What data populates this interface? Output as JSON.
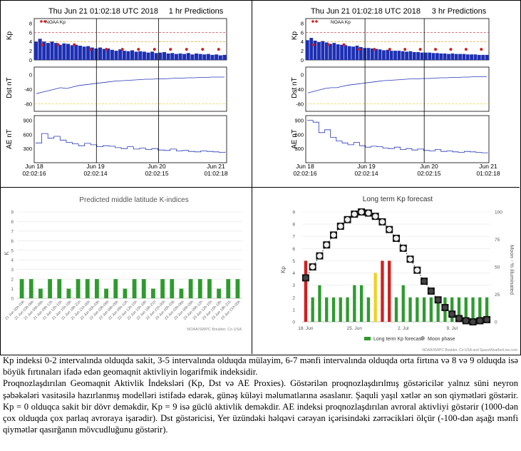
{
  "left_panel": {
    "title": "Thu Jun 21 01:02:18 UTC 2018",
    "subtitle": "1 hr Predictions",
    "legend": "NOAA Kp",
    "ylabels": [
      "Kp",
      "Dst nT",
      "AE nT"
    ],
    "x_dates": [
      "Jun 18",
      "Jun 19",
      "Jun 20",
      "Jun 21"
    ],
    "x_times": [
      "02:02:16",
      "02:02:14",
      "02:02:15",
      "01:02:18"
    ]
  },
  "right_panel": {
    "title": "Thu Jun 21 01:02:18 UTC 2018",
    "subtitle": "3 hr Predictions",
    "legend": "NOAA Kp",
    "ylabels": [
      "Kp",
      "Dst nT",
      "AE nT"
    ],
    "x_dates": [
      "Jun 18",
      "Jun 19",
      "Jun 20",
      "Jun 21"
    ],
    "x_times": [
      "02:02:16",
      "02:02:14",
      "02:02:15",
      "01:02:18"
    ]
  },
  "kp_ticks": [
    "8",
    "6",
    "4",
    "2",
    "0"
  ],
  "dst_ticks": [
    "0",
    "-40",
    "-80"
  ],
  "ae_ticks": [
    "900",
    "600",
    "300"
  ],
  "k_panel": {
    "title": "Predicted middle latitude K-indices",
    "ylabel": "K",
    "credit": "NOAA/SWPC Boulder, Co USA",
    "yticks": [
      "9",
      "8",
      "7",
      "6",
      "5",
      "4",
      "3",
      "2",
      "1",
      "0"
    ],
    "xticks": [
      "21 Jun 00h-03h",
      "21 Jun 03h-06h",
      "21 Jun 06h-09h",
      "21 Jun 09h-12h",
      "21 Jun 12h-15h",
      "21 Jun 15h-18h",
      "21 Jun 18h-21h",
      "21 Jun 21h-00h",
      "22 Jun 00h-03h",
      "22 Jun 03h-06h",
      "22 Jun 06h-09h",
      "22 Jun 09h-12h",
      "22 Jun 12h-15h",
      "22 Jun 15h-18h",
      "22 Jun 18h-21h",
      "22 Jun 21h-00h",
      "23 Jun 00h-03h",
      "23 Jun 03h-06h",
      "23 Jun 06h-09h",
      "23 Jun 09h-12h",
      "23 Jun 12h-15h",
      "23 Jun 15h-18h",
      "23 Jun 18h-21h",
      "23 Jun 21h-00h"
    ]
  },
  "lt_panel": {
    "title": "Long term Kp forecast",
    "ylabel_left": "Kp",
    "ylabel_right": "Moon - % illuminated",
    "yticks_left": [
      "9",
      "8",
      "7",
      "6",
      "5",
      "4",
      "3",
      "2",
      "1",
      "0"
    ],
    "yticks_right": [
      "100",
      "75",
      "50",
      "25",
      "0"
    ],
    "xticks": [
      "18. Jun",
      "25. Jun",
      "2. Jul",
      "9. Jul"
    ],
    "legend_kp": "Long term Kp forecast",
    "legend_moon": "Moon phase",
    "credit": "NOAA/SWPC Boulder, Co USA and SpaceWeatherLive.com"
  },
  "chart_data": [
    {
      "type": "bar",
      "title": "Predicted middle latitude K-indices",
      "ylabel": "K",
      "ylim": [
        0,
        9
      ],
      "categories": [
        "21 Jun 00h-03h",
        "21 Jun 03h-06h",
        "21 Jun 06h-09h",
        "21 Jun 09h-12h",
        "21 Jun 12h-15h",
        "21 Jun 15h-18h",
        "21 Jun 18h-21h",
        "21 Jun 21h-00h",
        "22 Jun 00h-03h",
        "22 Jun 03h-06h",
        "22 Jun 06h-09h",
        "22 Jun 09h-12h",
        "22 Jun 12h-15h",
        "22 Jun 15h-18h",
        "22 Jun 18h-21h",
        "22 Jun 21h-00h",
        "23 Jun 00h-03h",
        "23 Jun 03h-06h",
        "23 Jun 06h-09h",
        "23 Jun 09h-12h",
        "23 Jun 12h-15h",
        "23 Jun 15h-18h",
        "23 Jun 18h-21h",
        "23 Jun 21h-00h"
      ],
      "values": [
        2,
        2,
        1,
        2,
        2,
        1,
        2,
        2,
        2,
        1,
        2,
        1,
        2,
        2,
        1,
        2,
        2,
        1,
        2,
        2,
        2,
        1,
        2,
        2
      ],
      "color": "#2e9b2e"
    },
    {
      "type": "bar",
      "title": "Long term Kp forecast",
      "ylabel": "Kp",
      "ylim": [
        0,
        9
      ],
      "x": [
        "2018-06-18",
        "2018-06-19",
        "2018-06-20",
        "2018-06-21",
        "2018-06-22",
        "2018-06-23",
        "2018-06-24",
        "2018-06-25",
        "2018-06-26",
        "2018-06-27",
        "2018-06-28",
        "2018-06-29",
        "2018-06-30",
        "2018-07-01",
        "2018-07-02",
        "2018-07-03",
        "2018-07-04",
        "2018-07-05",
        "2018-07-06",
        "2018-07-07",
        "2018-07-08",
        "2018-07-09",
        "2018-07-10",
        "2018-07-11",
        "2018-07-12",
        "2018-07-13",
        "2018-07-14"
      ],
      "values": [
        5,
        2,
        3,
        2,
        2,
        2,
        2,
        3,
        3,
        2,
        4,
        5,
        5,
        2,
        3,
        2,
        2,
        2,
        2,
        2,
        2,
        2,
        2,
        2,
        2,
        2,
        2
      ],
      "colors": [
        "#d21e1e",
        "#2e9b2e",
        "#2e9b2e",
        "#2e9b2e",
        "#2e9b2e",
        "#2e9b2e",
        "#2e9b2e",
        "#2e9b2e",
        "#2e9b2e",
        "#2e9b2e",
        "#f0d21e",
        "#d21e1e",
        "#d21e1e",
        "#2e9b2e",
        "#2e9b2e",
        "#2e9b2e",
        "#2e9b2e",
        "#2e9b2e",
        "#2e9b2e",
        "#2e9b2e",
        "#2e9b2e",
        "#2e9b2e",
        "#2e9b2e",
        "#2e9b2e",
        "#2e9b2e",
        "#2e9b2e",
        "#2e9b2e"
      ],
      "moon_illumination": [
        40,
        50,
        60,
        70,
        79,
        87,
        93,
        98,
        100,
        99,
        96,
        91,
        84,
        76,
        67,
        57,
        47,
        37,
        28,
        20,
        13,
        7,
        3,
        1,
        0,
        1,
        2
      ],
      "moon_ylim": [
        0,
        100
      ],
      "xticks": [
        "18. Jun",
        "25. Jun",
        "2. Jul",
        "9. Jul"
      ]
    },
    {
      "type": "bar",
      "title": "1 hr Predictions",
      "ylabel": "Kp",
      "ylim": [
        0,
        9
      ],
      "series": [
        {
          "name": "NOAA Kp",
          "values": [
            3,
            3,
            3,
            2,
            2,
            2,
            2,
            2,
            2,
            2,
            2,
            2
          ]
        }
      ],
      "kp_bars": [
        4.0,
        4.6,
        4.0,
        3.7,
        4.0,
        3.7,
        3.3,
        3.6,
        3.5,
        3.2,
        3.3,
        3.1,
        2.9,
        3.0,
        2.7,
        2.5,
        2.7,
        2.4,
        2.5,
        2.2,
        2.0,
        2.3,
        2.0,
        1.9,
        2.1,
        1.8,
        1.9,
        1.8,
        1.6,
        1.8,
        1.5,
        1.6,
        1.7,
        1.4,
        1.5,
        1.3,
        1.4,
        1.3,
        1.5,
        1.2,
        1.4,
        1.3,
        1.2,
        1.3,
        1.1,
        1.2,
        1.0,
        1.1
      ],
      "dst": [
        -52,
        -48,
        -44,
        -40,
        -36,
        -38,
        -34,
        -30,
        -28,
        -26,
        -24,
        -22,
        -20,
        -18,
        -17,
        -16,
        -15,
        -14,
        -13,
        -13,
        -12,
        -12,
        -11,
        -10,
        -10,
        -9,
        -9,
        -8,
        -8,
        -7,
        -7,
        -7
      ],
      "ae": [
        420,
        620,
        520,
        560,
        480,
        430,
        400,
        360,
        410,
        380,
        340,
        360,
        350,
        320,
        300,
        340,
        290,
        310,
        280,
        300,
        270,
        260,
        290,
        250,
        260,
        240,
        230,
        250,
        240,
        230,
        220,
        230
      ]
    },
    {
      "type": "bar",
      "title": "3 hr Predictions",
      "ylabel": "Kp",
      "ylim": [
        0,
        9
      ],
      "series": [
        {
          "name": "NOAA Kp",
          "values": [
            3,
            3,
            3,
            2,
            2,
            2,
            2,
            2,
            2,
            2,
            2,
            2
          ]
        }
      ],
      "kp_bars": [
        4.3,
        4.8,
        4.2,
        3.9,
        4.1,
        3.8,
        3.5,
        3.7,
        3.4,
        3.3,
        3.2,
        3.0,
        2.9,
        3.1,
        2.8,
        2.6,
        2.6,
        2.5,
        2.4,
        2.3,
        2.1,
        2.2,
        2.0,
        2.0,
        2.0,
        1.9,
        1.8,
        1.9,
        1.7,
        1.7,
        1.6,
        1.6,
        1.6,
        1.5,
        1.5,
        1.4,
        1.4,
        1.3,
        1.4,
        1.3,
        1.3,
        1.3,
        1.2,
        1.2,
        1.2,
        1.1,
        1.1,
        1.1
      ],
      "dst": [
        -50,
        -46,
        -42,
        -38,
        -36,
        -36,
        -32,
        -29,
        -27,
        -25,
        -23,
        -21,
        -19,
        -17,
        -16,
        -15,
        -14,
        -13,
        -12,
        -12,
        -11,
        -11,
        -10,
        -9,
        -9,
        -8,
        -8,
        -7,
        -7,
        -6,
        -6,
        -6
      ],
      "ae": [
        900,
        860,
        640,
        700,
        540,
        460,
        420,
        380,
        430,
        360,
        330,
        350,
        340,
        310,
        300,
        330,
        280,
        300,
        270,
        290,
        260,
        250,
        280,
        240,
        250,
        230,
        220,
        240,
        230,
        220,
        210,
        220
      ]
    }
  ],
  "caption": {
    "p1": "Kp indeksi 0-2 intervalında olduqda sakit, 3-5 intervalında olduqda mülayim, 6-7 mənfi intervalında olduqda orta firtına və 8 və 9 olduqda isə böyük fırtınaları ifadə edən geomaqnit aktivliyin logarifmik indeksidir.",
    "p2": "Proqnozlaşdırılan Geomaqnit Aktivlik İndeksləri (Kp, Dst və AE Proxies). Göstərilən proqnozlaşdırılmış göstəricilər yalnız süni neyron şəbəkələri vasitəsilə hazırlanmış modelləri istifadə edərək, günəş küləyi məlumatlarına əsaslanır. Şaquli yaşıl xətlər ən son qiymətləri göstərir. Kp = 0 olduqca sakit bir dövr deməkdir, Kp = 9 isə güclü aktivlik deməkdir. AE indeksi proqnozlaşdırılan avroral aktivliyi göstərir (1000-dən çox olduqda çox parlaq avroraya işarədir). Dst göstəricisi, Yer üzündəki həlqəvi cərəyan içərisindəki zərrəcikləri ölçür (-100-dən aşağı mənfi qiymətlər qasırğanın mövcudluğunu göstərir)."
  }
}
